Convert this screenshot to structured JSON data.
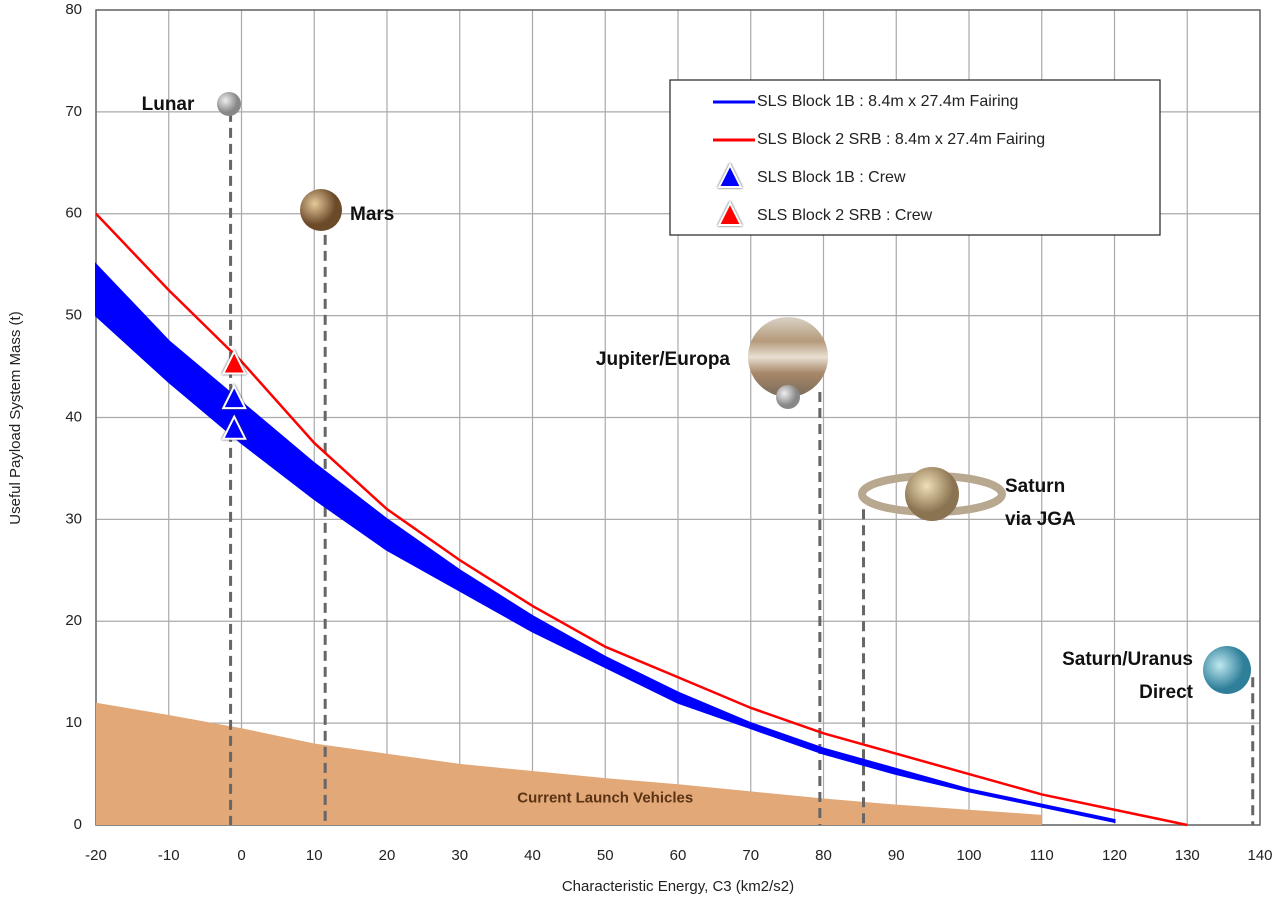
{
  "chart_data": {
    "type": "line",
    "x_label": "Characteristic Energy, C3 (km2/s2)",
    "y_label": "Useful Payload System Mass  (t)",
    "xlim": [
      -20,
      140
    ],
    "ylim": [
      0,
      80
    ],
    "xticks": [
      -20,
      -10,
      0,
      10,
      20,
      30,
      40,
      50,
      60,
      70,
      80,
      90,
      100,
      110,
      120,
      130,
      140
    ],
    "yticks": [
      0,
      10,
      20,
      30,
      40,
      50,
      60,
      70,
      80
    ],
    "grid": true,
    "x": [
      -20,
      -10,
      0,
      10,
      20,
      30,
      40,
      50,
      60,
      70,
      80,
      90,
      100,
      110,
      120,
      130
    ],
    "area": {
      "label": "Current Launch Vehicles",
      "color": "#e2a878",
      "values": [
        12,
        10.8,
        9.5,
        8,
        7,
        6,
        5.3,
        4.6,
        4,
        3.3,
        2.6,
        2,
        1.5,
        1,
        null,
        null
      ]
    },
    "series": [
      {
        "name": "SLS Block 1B : 8.4m x 27.4m Fairing",
        "color": "#0000ff",
        "values": [
          55,
          47.5,
          41.5,
          35.5,
          30,
          25,
          20.5,
          16.5,
          13,
          10,
          7.5,
          5.5,
          3.5,
          2,
          0.5,
          null
        ],
        "low": [
          50,
          43.5,
          37.5,
          32,
          27,
          23,
          19,
          15.5,
          12,
          9.5,
          7,
          5,
          3.3,
          1.8,
          0.3,
          null
        ]
      },
      {
        "name": "SLS Block 2 SRB : 8.4m x 27.4m Fairing",
        "color": "#ff0000",
        "values": [
          60,
          52.5,
          45.5,
          37.5,
          31,
          26,
          21.5,
          17.5,
          14.5,
          11.5,
          9,
          7,
          5,
          3,
          1.5,
          0
        ]
      }
    ],
    "markers": [
      {
        "name": "SLS Block 1B : Crew",
        "color": "#0000ff",
        "x": [
          -1,
          -1
        ],
        "values": [
          41.8,
          38.8
        ]
      },
      {
        "name": "SLS Block 2 SRB : Crew",
        "color": "#ff0000",
        "x": [
          -1
        ],
        "values": [
          45.2
        ]
      }
    ],
    "legend": "upper-right",
    "destinations": [
      {
        "lines": [
          "Lunar"
        ],
        "x": -1.5,
        "top": 70
      },
      {
        "lines": [
          "Mars"
        ],
        "x": 11.5,
        "top": 59.5
      },
      {
        "lines": [
          "Jupiter/Europa"
        ],
        "x": 79.5,
        "top": 42.5
      },
      {
        "lines": [
          "Saturn",
          "via JGA"
        ],
        "x": 85.5,
        "top": 31
      },
      {
        "lines": [
          "Saturn/Uranus",
          "Direct"
        ],
        "x": 139,
        "top": 14.5
      }
    ]
  }
}
